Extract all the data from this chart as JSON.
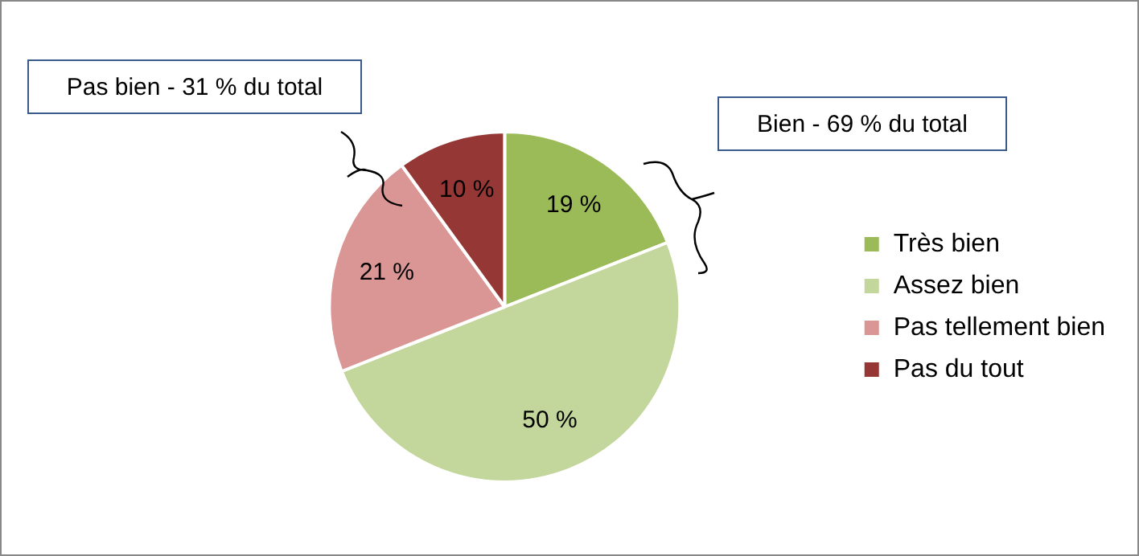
{
  "chart_data": {
    "type": "pie",
    "categories": [
      "Très bien",
      "Assez bien",
      "Pas tellement bien",
      "Pas du tout"
    ],
    "values": [
      19,
      50,
      21,
      10
    ],
    "colors": [
      "#9bbb59",
      "#c3d69b",
      "#d99694",
      "#953735"
    ],
    "value_labels": [
      "19 %",
      "50 %",
      "21 %",
      "10 %"
    ],
    "annotations": [
      "Pas bien - 31 % du total",
      "Bien - 69 % du total"
    ],
    "legend": "right"
  }
}
